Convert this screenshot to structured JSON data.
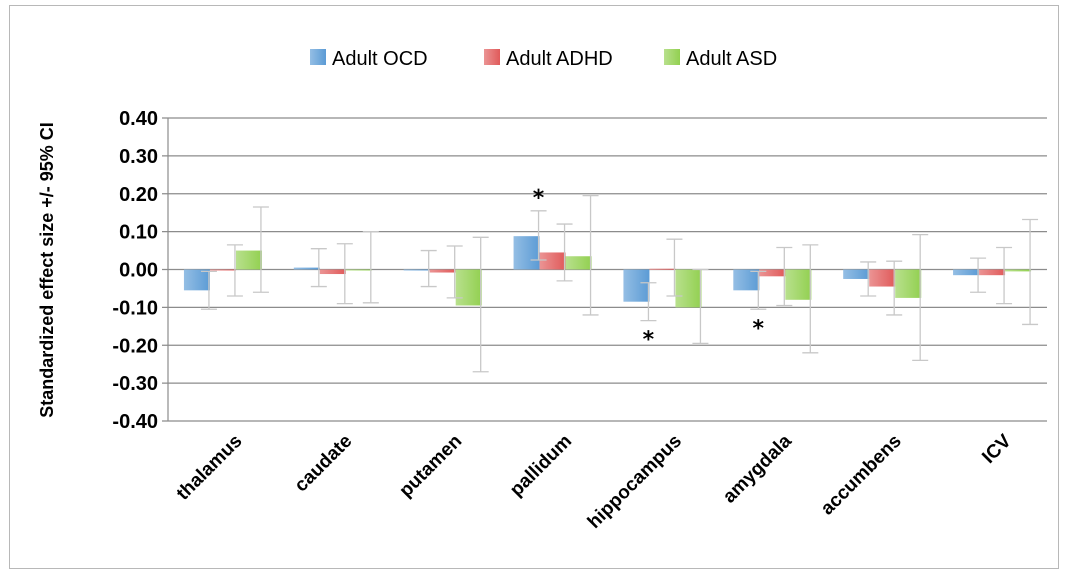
{
  "chart_data": {
    "type": "bar",
    "title": "",
    "xlabel": "",
    "ylabel": "Standardized effect size  +/- 95% CI",
    "ylim": [
      -0.4,
      0.4
    ],
    "yticks": [
      "0.40",
      "0.30",
      "0.20",
      "0.10",
      "0.00",
      "-0.10",
      "-0.20",
      "-0.30",
      "-0.40"
    ],
    "grid": true,
    "legend_position": "top",
    "categories": [
      "thalamus",
      "caudate",
      "putamen",
      "pallidum",
      "hippocampus",
      "amygdala",
      "accumbens",
      "ICV"
    ],
    "series": [
      {
        "name": "Adult OCD",
        "color": "#5b9bd5",
        "values": [
          -0.055,
          0.005,
          0.0,
          0.088,
          -0.085,
          -0.055,
          -0.025,
          -0.015
        ],
        "ci_low": [
          -0.105,
          -0.045,
          -0.045,
          0.025,
          -0.135,
          -0.105,
          -0.07,
          -0.06
        ],
        "ci_high": [
          -0.005,
          0.055,
          0.05,
          0.155,
          -0.035,
          -0.005,
          0.02,
          0.03
        ]
      },
      {
        "name": "Adult ADHD",
        "color": "#e05a5a",
        "values": [
          0.0,
          -0.012,
          -0.008,
          0.045,
          0.002,
          -0.018,
          -0.045,
          -0.015
        ],
        "ci_low": [
          -0.07,
          -0.09,
          -0.075,
          -0.03,
          -0.07,
          -0.095,
          -0.12,
          -0.09
        ],
        "ci_high": [
          0.065,
          0.068,
          0.062,
          0.12,
          0.08,
          0.058,
          0.022,
          0.058
        ]
      },
      {
        "name": "Adult ASD",
        "color": "#92d050",
        "values": [
          0.05,
          0.0,
          -0.095,
          0.035,
          -0.1,
          -0.08,
          -0.075,
          -0.005
        ],
        "ci_low": [
          -0.06,
          -0.088,
          -0.27,
          -0.12,
          -0.195,
          -0.22,
          -0.24,
          -0.145
        ],
        "ci_high": [
          0.165,
          0.1,
          0.085,
          0.195,
          0.0,
          0.065,
          0.092,
          0.132
        ]
      }
    ],
    "annotations": [
      {
        "text": "*",
        "category": "pallidum",
        "series": "Adult OCD",
        "position": "above"
      },
      {
        "text": "*",
        "category": "hippocampus",
        "series": "Adult OCD",
        "position": "below"
      },
      {
        "text": "*",
        "category": "amygdala",
        "series": "Adult OCD",
        "position": "below"
      }
    ]
  }
}
